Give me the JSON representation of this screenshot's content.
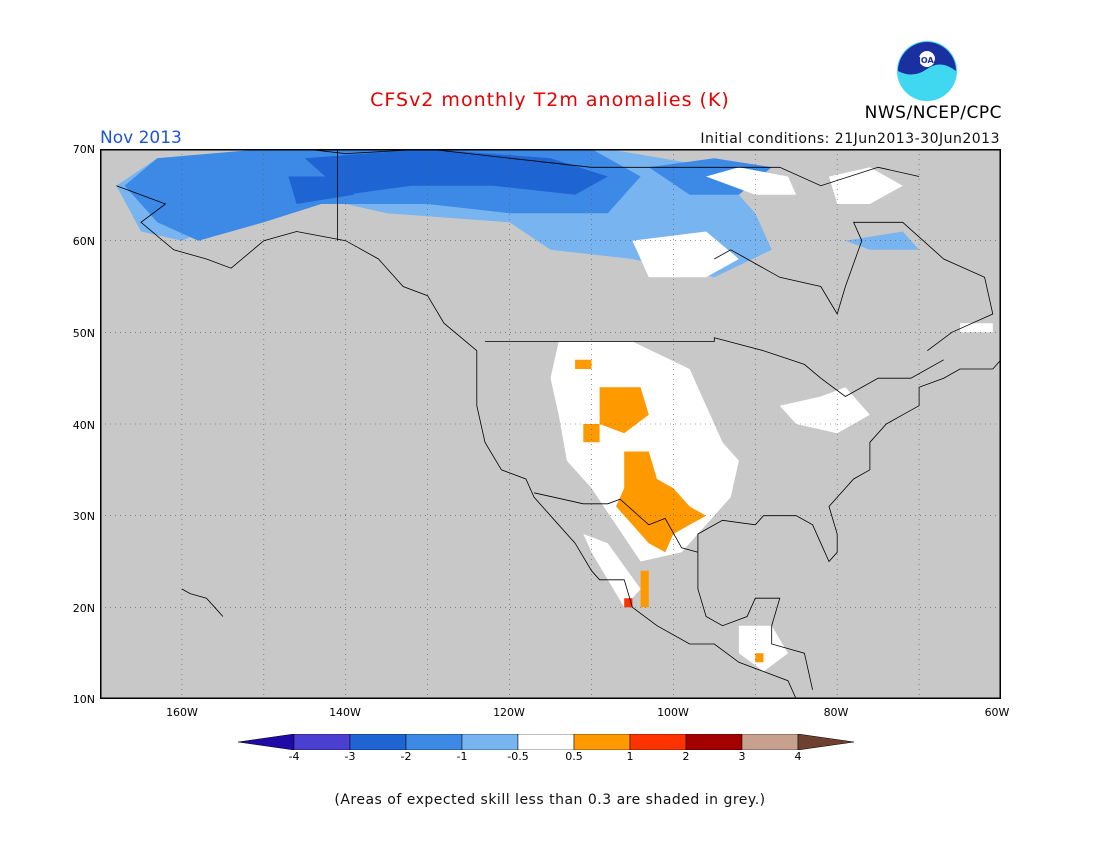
{
  "header": {
    "title": "CFSv2 monthly T2m anomalies (K)",
    "month": "Nov 2013",
    "initial_conditions": "Initial conditions: 21Jun2013-30Jun2013",
    "agency": "NWS/NCEP/CPC",
    "logo_text": "NOAA"
  },
  "map": {
    "extent": {
      "lon_west": -170,
      "lon_east": -60,
      "lat_south": 10,
      "lat_north": 70
    },
    "lat_labels": [
      "70N",
      "60N",
      "50N",
      "40N",
      "30N",
      "20N",
      "10N"
    ],
    "lon_labels": [
      "160W",
      "140W",
      "120W",
      "100W",
      "80W",
      "60W"
    ],
    "background_color": "#c8c8c8",
    "grid": "dotted"
  },
  "colorbar": {
    "labels": [
      "-4",
      "-3",
      "-2",
      "-1",
      "-0.5",
      "0.5",
      "1",
      "2",
      "3",
      "4"
    ],
    "colors": [
      "#1f0aa8",
      "#4a3fd0",
      "#1e64d2",
      "#3c8ae6",
      "#78b4f0",
      "#ffffff",
      "#ff9900",
      "#ff3300",
      "#a50000",
      "#c8a090",
      "#6e4030"
    ]
  },
  "footnote": "(Areas of expected skill less than 0.3 are shaded in grey.)"
}
